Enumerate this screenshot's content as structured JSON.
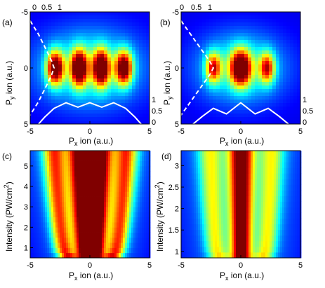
{
  "colors": {
    "background": "#ffffff",
    "colormap": [
      "#00008f",
      "#0000ff",
      "#0080ff",
      "#00ffff",
      "#80ff80",
      "#ffff00",
      "#ff8000",
      "#ff0000",
      "#800000"
    ],
    "overlay_line": "#ffffff"
  },
  "chart_data": [
    {
      "id": "a",
      "panel_label": "(a)",
      "type": "heatmap",
      "xlabel_main": "P",
      "xlabel_sub": "x",
      "xlabel_rest": " ion (a.u.)",
      "ylabel_main": "P",
      "ylabel_sub": "y",
      "ylabel_rest": " ion (a.u.)",
      "xlim": [
        -5,
        5
      ],
      "ylim": [
        -5,
        5
      ],
      "y_reversed": true,
      "x_ticks": [
        -5,
        0,
        5
      ],
      "y_ticks": [
        -5,
        0,
        5
      ],
      "top_axis_ticks": [
        "0",
        "0.5",
        "1"
      ],
      "right_axis_ticks": [
        "1",
        "0.5",
        "0"
      ],
      "blobs": [
        {
          "x": -2.9,
          "y": 0,
          "sx": 0.5,
          "sy": 1.05,
          "amp": 0.95
        },
        {
          "x": -0.9,
          "y": 0,
          "sx": 0.48,
          "sy": 1.1,
          "amp": 1.0
        },
        {
          "x": 0.95,
          "y": 0,
          "sx": 0.48,
          "sy": 1.1,
          "amp": 1.0
        },
        {
          "x": 2.85,
          "y": 0,
          "sx": 0.5,
          "sy": 1.05,
          "amp": 0.95
        }
      ],
      "halo": {
        "x": 0,
        "y": 0,
        "sx": 3.1,
        "sy": 2.4,
        "amp": 0.4
      },
      "projection_x": [
        -4.3,
        -3.8,
        -3.0,
        -2.0,
        -1.0,
        0.0,
        1.0,
        2.0,
        3.0,
        3.8,
        4.3
      ],
      "projection_y": [
        0.0,
        0.3,
        0.7,
        0.95,
        0.75,
        0.95,
        0.75,
        0.95,
        0.7,
        0.3,
        0.0
      ],
      "dashed_curve_x": [
        -5.0,
        -4.3,
        -3.6,
        -3.2,
        -3.0,
        -3.2,
        -3.6,
        -4.3,
        -5.0
      ],
      "dashed_curve_y": [
        -4.2,
        -3.0,
        -1.5,
        -0.6,
        0.0,
        0.6,
        1.5,
        3.0,
        4.2
      ]
    },
    {
      "id": "b",
      "panel_label": "(b)",
      "type": "heatmap",
      "xlabel_main": "P",
      "xlabel_sub": "x",
      "xlabel_rest": " ion (a.u.)",
      "ylabel_main": "P",
      "ylabel_sub": "y",
      "ylabel_rest": " ion (a.u.)",
      "xlim": [
        -5,
        5
      ],
      "ylim": [
        -5,
        5
      ],
      "y_reversed": true,
      "x_ticks": [
        -5,
        0,
        5
      ],
      "y_ticks": [
        -5,
        0,
        5
      ],
      "top_axis_ticks": [
        "0",
        "0.5",
        "1"
      ],
      "right_axis_ticks": [
        "1",
        "0.5",
        "0"
      ],
      "blobs": [
        {
          "x": -2.3,
          "y": 0,
          "sx": 0.45,
          "sy": 0.95,
          "amp": 0.7
        },
        {
          "x": 0.0,
          "y": 0,
          "sx": 0.6,
          "sy": 1.1,
          "amp": 1.0
        },
        {
          "x": 2.2,
          "y": 0,
          "sx": 0.45,
          "sy": 0.95,
          "amp": 0.7
        }
      ],
      "halo": {
        "x": 0,
        "y": 0,
        "sx": 2.6,
        "sy": 2.2,
        "amp": 0.38
      },
      "projection_x": [
        -4.0,
        -3.2,
        -2.3,
        -1.2,
        0.0,
        1.2,
        2.3,
        3.2,
        4.0
      ],
      "projection_y": [
        0.0,
        0.35,
        0.7,
        0.45,
        0.95,
        0.45,
        0.7,
        0.35,
        0.0
      ],
      "dashed_curve_x": [
        -5.0,
        -4.2,
        -3.2,
        -2.6,
        -2.3,
        -2.6,
        -3.2,
        -4.2,
        -5.0
      ],
      "dashed_curve_y": [
        -4.2,
        -3.0,
        -1.5,
        -0.6,
        0.0,
        0.6,
        1.5,
        3.0,
        4.2
      ]
    },
    {
      "id": "c",
      "panel_label": "(c)",
      "type": "heatmap",
      "xlabel_main": "P",
      "xlabel_sub": "x",
      "xlabel_rest": " ion (a.u.)",
      "ylabel_text": "Intensity (PW/cm",
      "ylabel_sup": "2",
      "ylabel_close": ")",
      "xlim": [
        -5,
        5
      ],
      "ylim": [
        0.5,
        5.75
      ],
      "x_ticks": [
        -5,
        0,
        5
      ],
      "y_ticks": [
        1,
        2,
        3,
        4,
        5
      ],
      "y_tick_labels": [
        "1",
        "2",
        "3",
        "4",
        "5"
      ],
      "rows": 21,
      "peaks_low": [
        -2.0,
        -0.35,
        0.35,
        2.0
      ],
      "peaks_high": [
        -3.1,
        -0.9,
        0.9,
        3.1
      ],
      "peak_width": 0.55,
      "envelope_low": 2.6,
      "envelope_high": 3.6
    },
    {
      "id": "d",
      "panel_label": "(d)",
      "type": "heatmap",
      "xlabel_main": "P",
      "xlabel_sub": "x",
      "xlabel_rest": " ion (a.u.)",
      "ylabel_text": "Intensity (PW/cm",
      "ylabel_sup": "2",
      "ylabel_close": ")",
      "xlim": [
        -5,
        5
      ],
      "ylim": [
        0.85,
        3.35
      ],
      "x_ticks": [
        -5,
        0,
        5
      ],
      "y_ticks": [
        1,
        1.5,
        2,
        2.5,
        3
      ],
      "y_tick_labels": [
        "1",
        "1.5",
        "2",
        "2.5",
        "3"
      ],
      "rows": 19,
      "peaks_low": [
        -2.0,
        0.0,
        2.0
      ],
      "peaks_high": [
        -2.7,
        0.0,
        2.7
      ],
      "peak_amps": [
        0.6,
        1.0,
        0.6
      ],
      "peak_width": 0.6,
      "envelope_low": 2.8,
      "envelope_high": 3.4
    }
  ]
}
